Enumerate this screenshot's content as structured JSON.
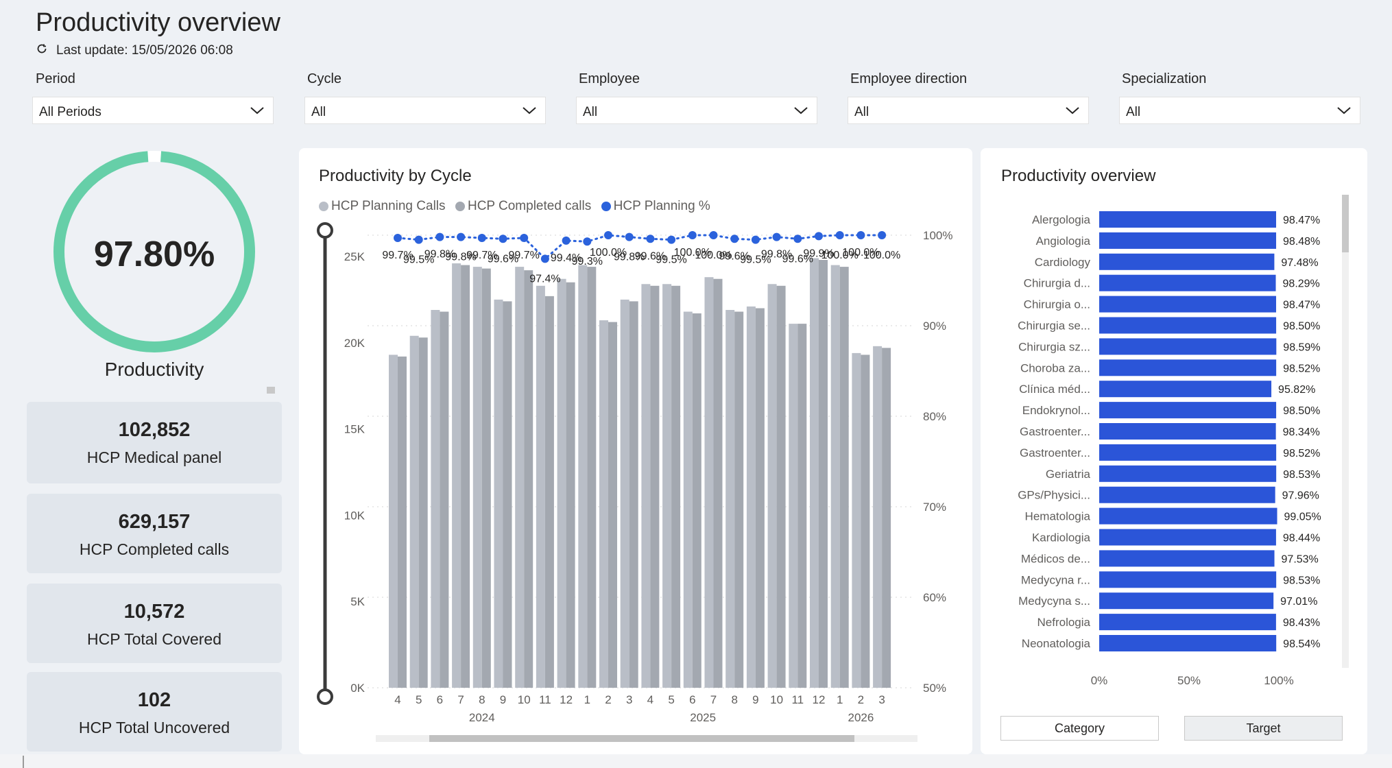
{
  "header": {
    "title": "Productivity overview",
    "last_update": "Last update: 15/05/2026 06:08"
  },
  "filters": [
    {
      "label": "Period",
      "value": "All Periods"
    },
    {
      "label": "Cycle",
      "value": "All"
    },
    {
      "label": "Employee",
      "value": "All"
    },
    {
      "label": "Employee direction",
      "value": "All"
    },
    {
      "label": "Specialization",
      "value": "All"
    }
  ],
  "gauge": {
    "value_text": "97.80%",
    "label": "Productivity",
    "fraction": 0.978,
    "color": "#66cfa8"
  },
  "kpis": [
    {
      "value": "102,852",
      "label": "HCP Medical panel"
    },
    {
      "value": "629,157",
      "label": "HCP Completed calls"
    },
    {
      "value": "10,572",
      "label": "HCP Total Covered"
    },
    {
      "value": "102",
      "label": "HCP Total Uncovered"
    }
  ],
  "cycle_chart": {
    "title": "Productivity by Cycle",
    "legend": [
      {
        "name": "HCP Planning Calls",
        "color": "#b9bec7"
      },
      {
        "name": "HCP Completed calls",
        "color": "#a3a8b0"
      },
      {
        "name": "HCP Planning %",
        "color": "#2b62dc"
      }
    ]
  },
  "overview_chart": {
    "title": "Productivity overview",
    "buttons": [
      "Category",
      "Target"
    ]
  },
  "chart_data": [
    {
      "type": "bar",
      "title": "Productivity by Cycle",
      "categories": [
        "4",
        "5",
        "6",
        "7",
        "8",
        "9",
        "10",
        "11",
        "12",
        "1",
        "2",
        "3",
        "4",
        "5",
        "6",
        "7",
        "8",
        "9",
        "10",
        "11",
        "12",
        "1",
        "2",
        "3"
      ],
      "x_groups": [
        {
          "label": "2024",
          "from": 0,
          "to": 8
        },
        {
          "label": "2025",
          "from": 9,
          "to": 20
        },
        {
          "label": "2026",
          "from": 21,
          "to": 23
        }
      ],
      "series": [
        {
          "name": "HCP Planning Calls",
          "axis": "left",
          "values": [
            19300,
            20400,
            21900,
            24600,
            24400,
            22500,
            24400,
            23300,
            23700,
            24500,
            21300,
            22500,
            23400,
            23400,
            21800,
            23800,
            21900,
            22100,
            23400,
            21100,
            24900,
            24500,
            19400,
            19800
          ]
        },
        {
          "name": "HCP Completed calls",
          "axis": "left",
          "values": [
            19200,
            20300,
            21800,
            24500,
            24300,
            22400,
            24200,
            22700,
            23500,
            24400,
            21200,
            22400,
            23300,
            23300,
            21700,
            23700,
            21800,
            22000,
            23300,
            21100,
            24800,
            24400,
            19300,
            19700
          ]
        },
        {
          "name": "HCP Planning %",
          "axis": "right",
          "type": "line",
          "values": [
            99.7,
            99.5,
            99.8,
            99.8,
            99.7,
            99.6,
            99.7,
            97.4,
            99.4,
            99.3,
            100.0,
            99.8,
            99.6,
            99.5,
            100.0,
            100.0,
            99.6,
            99.5,
            99.8,
            99.6,
            99.9,
            100.0,
            100.0,
            100.0
          ],
          "labels": [
            "99.7%",
            "99.5%",
            "99.8%",
            "99.8%",
            "99.7%",
            "99.6%",
            "99.7%",
            "97.4%",
            "99.4%",
            "99.3%",
            "100.0%",
            "99.8%",
            "99.6%",
            "99.5%",
            "100.0%",
            "100.0%",
            "99.6%",
            "99.5%",
            "99.8%",
            "99.6%",
            "99.9%",
            "100.0%",
            "100.0%",
            "100.0%"
          ]
        }
      ],
      "y_left": {
        "range": [
          0,
          25000
        ],
        "ticks": [
          "0K",
          "5K",
          "10K",
          "15K",
          "20K",
          "25K"
        ],
        "tick_values": [
          0,
          5000,
          10000,
          15000,
          20000,
          25000
        ]
      },
      "y_right": {
        "range": [
          50,
          100
        ],
        "ticks": [
          "50%",
          "60%",
          "70%",
          "80%",
          "90%",
          "100%"
        ],
        "tick_values": [
          50,
          60,
          70,
          80,
          90,
          100
        ]
      }
    },
    {
      "type": "bar",
      "orientation": "horizontal",
      "title": "Productivity overview",
      "categories": [
        "Alergologia",
        "Angiologia",
        "Cardiology",
        "Chirurgia d...",
        "Chirurgia o...",
        "Chirurgia se...",
        "Chirurgia sz...",
        "Choroba za...",
        "Clínica méd...",
        "Endokrynol...",
        "Gastroenter...",
        "Gastroenter...",
        "Geriatria",
        "GPs/Physici...",
        "Hematologia",
        "Kardiologia",
        "Médicos de...",
        "Medycyna r...",
        "Medycyna s...",
        "Nefrologia",
        "Neonatologia"
      ],
      "values": [
        98.47,
        98.48,
        97.48,
        98.29,
        98.47,
        98.5,
        98.59,
        98.52,
        95.82,
        98.5,
        98.34,
        98.52,
        98.53,
        97.96,
        99.05,
        98.44,
        97.53,
        98.53,
        97.01,
        98.43,
        98.54
      ],
      "labels": [
        "98.47%",
        "98.48%",
        "97.48%",
        "98.29%",
        "98.47%",
        "98.50%",
        "98.59%",
        "98.52%",
        "95.82%",
        "98.50%",
        "98.34%",
        "98.52%",
        "98.53%",
        "97.96%",
        "99.05%",
        "98.44%",
        "97.53%",
        "98.53%",
        "97.01%",
        "98.43%",
        "98.54%"
      ],
      "x_ticks": [
        "0%",
        "50%",
        "100%"
      ],
      "xlim": [
        0,
        100
      ],
      "color": "#2b55d8"
    }
  ]
}
